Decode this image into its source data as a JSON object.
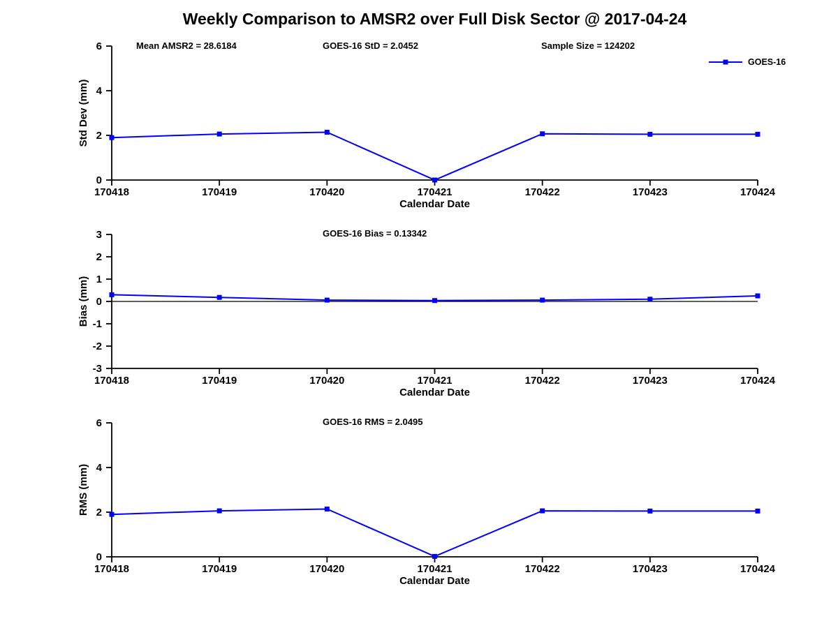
{
  "figure": {
    "title": "Weekly Comparison to AMSR2 over Full Disk Sector @ 2017-04-24",
    "series_color": "#0000ff",
    "axis_color": "#000000",
    "legend_label": "GOES-16"
  },
  "chart_data": [
    {
      "type": "line",
      "name": "std-dev-vs-date",
      "annotations": [
        "Mean AMSR2 = 28.6184",
        "GOES-16 StD = 2.0452",
        "Sample Size = 124202"
      ],
      "categories": [
        "170418",
        "170419",
        "170420",
        "170421",
        "170422",
        "170423",
        "170424"
      ],
      "series": [
        {
          "name": "GOES-16",
          "color": "#0000ff",
          "marker": "square",
          "values": [
            1.9,
            2.06,
            2.14,
            0.0,
            2.07,
            2.05,
            2.05
          ]
        }
      ],
      "xlabel": "Calendar Date",
      "ylabel": "Std Dev (mm)",
      "ylim": [
        0,
        6
      ],
      "yticks": [
        0,
        2,
        4,
        6
      ],
      "zero_line": false,
      "grid": false,
      "legend": {
        "show": true,
        "position": "top-right",
        "entries": [
          "GOES-16"
        ]
      }
    },
    {
      "type": "line",
      "name": "bias-vs-date",
      "annotations": [
        "GOES-16 Bias  = 0.13342"
      ],
      "categories": [
        "170418",
        "170419",
        "170420",
        "170421",
        "170422",
        "170423",
        "170424"
      ],
      "series": [
        {
          "name": "GOES-16",
          "color": "#0000ff",
          "marker": "square",
          "values": [
            0.3,
            0.18,
            0.06,
            0.04,
            0.06,
            0.1,
            0.25
          ]
        }
      ],
      "xlabel": "Calendar Date",
      "ylabel": "Bias (mm)",
      "ylim": [
        -3,
        3
      ],
      "yticks": [
        -3,
        -2,
        -1,
        0,
        1,
        2,
        3
      ],
      "zero_line": true,
      "grid": false,
      "legend": {
        "show": false
      }
    },
    {
      "type": "line",
      "name": "rms-vs-date",
      "annotations": [
        "GOES-16 RMS = 2.0495"
      ],
      "categories": [
        "170418",
        "170419",
        "170420",
        "170421",
        "170422",
        "170423",
        "170424"
      ],
      "series": [
        {
          "name": "GOES-16",
          "color": "#0000ff",
          "marker": "square",
          "values": [
            1.9,
            2.06,
            2.14,
            0.02,
            2.06,
            2.05,
            2.05
          ]
        }
      ],
      "xlabel": "Calendar Date",
      "ylabel": "RMS (mm)",
      "ylim": [
        0,
        6
      ],
      "yticks": [
        0,
        2,
        4,
        6
      ],
      "zero_line": false,
      "grid": false,
      "legend": {
        "show": false
      }
    }
  ]
}
